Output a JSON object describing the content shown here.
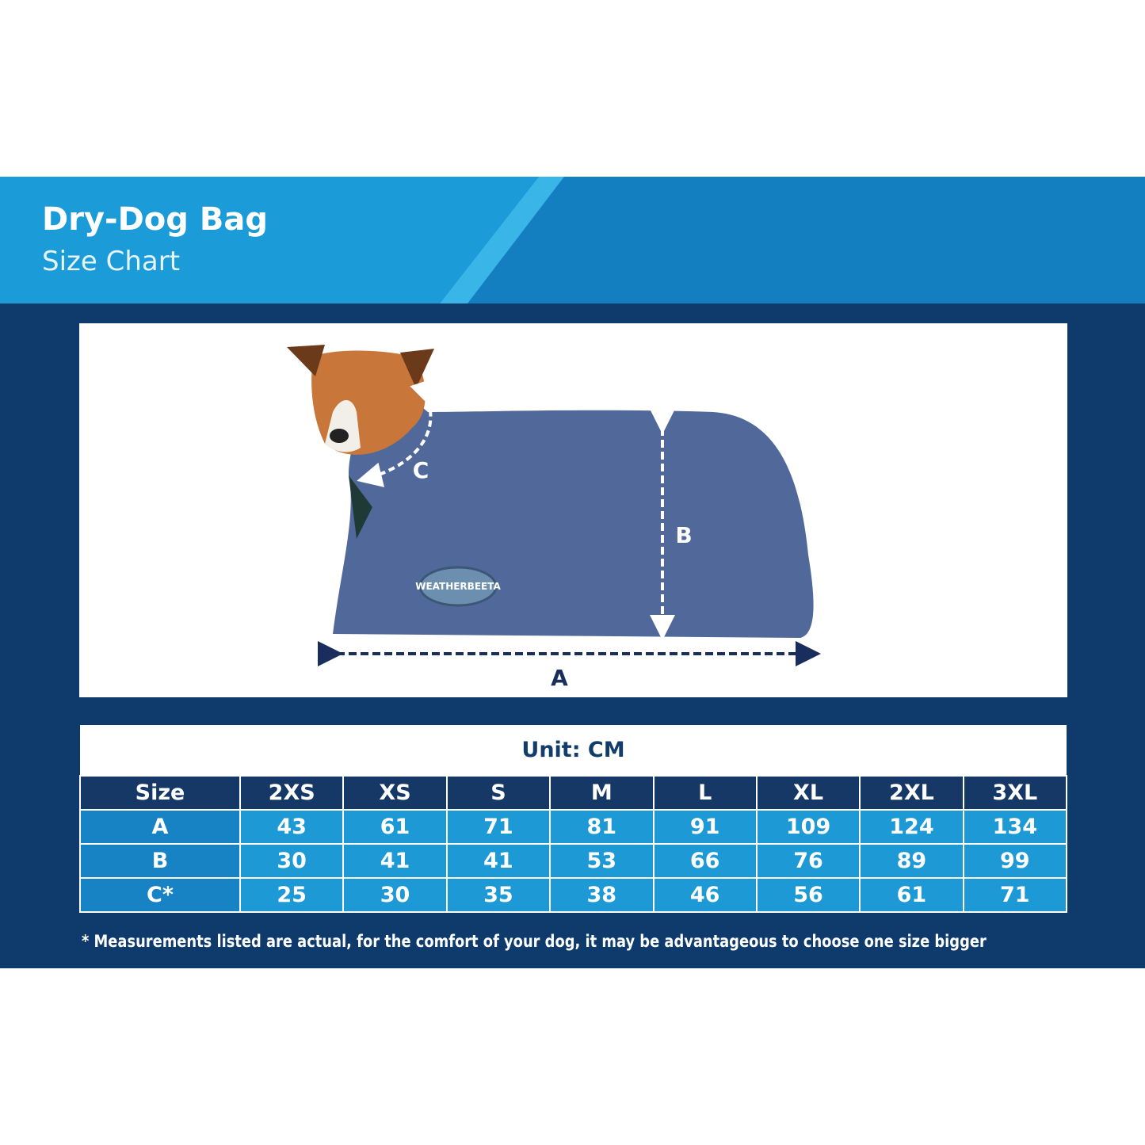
{
  "header": {
    "title": "Dry-Dog Bag",
    "subtitle": "Size Chart"
  },
  "diagram": {
    "labels": {
      "a": "A",
      "b": "B",
      "c": "C"
    },
    "badge": "WEATHERBEETA"
  },
  "table": {
    "unit": "Unit: CM",
    "columns": [
      "Size",
      "2XS",
      "XS",
      "S",
      "M",
      "L",
      "XL",
      "2XL",
      "3XL"
    ],
    "rows": [
      [
        "A",
        43,
        61,
        71,
        81,
        91,
        109,
        124,
        134
      ],
      [
        "B",
        30,
        41,
        41,
        53,
        66,
        76,
        89,
        99
      ],
      [
        "C*",
        25,
        30,
        35,
        38,
        46,
        56,
        61,
        71
      ]
    ]
  },
  "footnote": "* Measurements listed are actual, for the comfort of your dog, it may be advantageous to choose one size bigger"
}
